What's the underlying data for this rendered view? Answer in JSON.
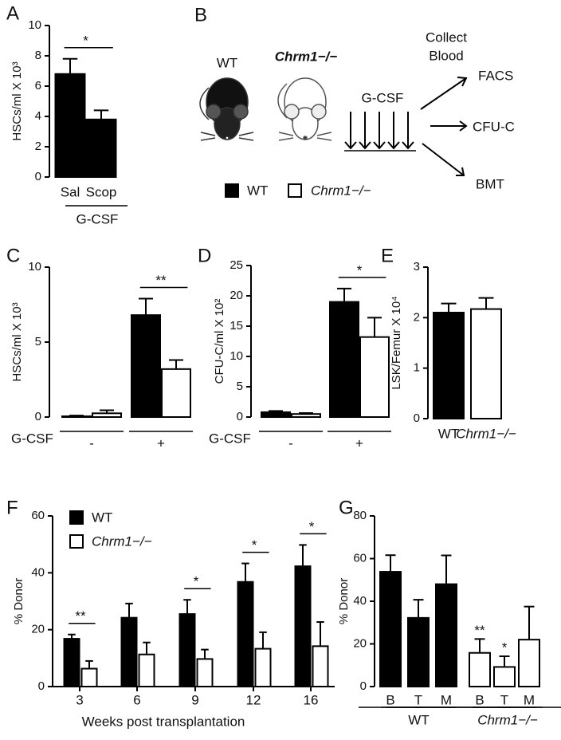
{
  "chart_data": [
    {
      "type": "bar",
      "label": "A",
      "ylabel": "HSCs/ml X 10³",
      "categories": [
        "Sal",
        "Scop"
      ],
      "values": [
        6.8,
        3.8
      ],
      "errors": [
        1.0,
        0.6
      ],
      "colors": [
        "#000000",
        "#000000"
      ],
      "xlabel": "G-CSF",
      "significance": "*",
      "ylim": [
        0,
        10
      ],
      "yticks": [
        0,
        2,
        4,
        6,
        8,
        10
      ]
    },
    {
      "type": "bar",
      "label": "C",
      "ylabel": "HSCs/ml X 10³",
      "categories": [
        "-",
        "+"
      ],
      "series": [
        {
          "color": "#000000",
          "values": [
            0.05,
            6.8
          ],
          "errors": [
            0.05,
            1.1
          ]
        },
        {
          "color": "#ffffff",
          "values": [
            0.25,
            3.2
          ],
          "errors": [
            0.2,
            0.6
          ]
        }
      ],
      "xlabel": "G-CSF",
      "significance": [
        null,
        "**"
      ],
      "ylim": [
        0,
        10
      ],
      "yticks": [
        0,
        5,
        10
      ]
    },
    {
      "type": "bar",
      "label": "D",
      "ylabel": "CFU-C/ml X 10²",
      "categories": [
        "-",
        "+"
      ],
      "series": [
        {
          "color": "#000000",
          "values": [
            0.8,
            19
          ],
          "errors": [
            0.2,
            2.2
          ]
        },
        {
          "color": "#ffffff",
          "values": [
            0.5,
            13.2
          ],
          "errors": [
            0.15,
            3.2
          ]
        }
      ],
      "xlabel": "G-CSF",
      "significance": [
        null,
        "*"
      ],
      "ylim": [
        0,
        25
      ],
      "yticks": [
        0,
        5,
        10,
        15,
        20,
        25
      ]
    },
    {
      "type": "bar",
      "label": "E",
      "ylabel": "LSK/Femur  X 10⁴",
      "categories": [
        "WT",
        "Chrm1−/−"
      ],
      "values": [
        2.1,
        2.17
      ],
      "errors": [
        0.18,
        0.22
      ],
      "colors": [
        "#000000",
        "#ffffff"
      ],
      "ylim": [
        0,
        3
      ],
      "yticks": [
        0,
        1,
        2,
        3
      ]
    },
    {
      "type": "bar",
      "label": "F",
      "ylabel": "% Donor",
      "xlabel": "Weeks post transplantation",
      "categories": [
        "3",
        "6",
        "9",
        "12",
        "16"
      ],
      "series": [
        {
          "name": "WT",
          "color": "#000000",
          "values": [
            16.8,
            24.2,
            25.5,
            36.8,
            42.3
          ],
          "errors": [
            1.5,
            5,
            5,
            6.5,
            7.5
          ]
        },
        {
          "name": "Chrm1−/−",
          "color": "#ffffff",
          "values": [
            6.3,
            11.3,
            9.7,
            13.3,
            14.2
          ],
          "errors": [
            2.7,
            4.2,
            3.3,
            5.8,
            8.5
          ]
        }
      ],
      "significance": [
        "**",
        null,
        "*",
        "*",
        "*"
      ],
      "ylim": [
        0,
        60
      ],
      "yticks": [
        0,
        20,
        40,
        60
      ],
      "legend": "top-left"
    },
    {
      "type": "bar",
      "label": "G",
      "ylabel": "% Donor",
      "categories": [
        "B",
        "T",
        "M",
        "B",
        "T",
        "M"
      ],
      "values": [
        53.8,
        32.2,
        48,
        15.8,
        9.2,
        22
      ],
      "errors": [
        7.8,
        8.5,
        13.5,
        6.5,
        5,
        15.5
      ],
      "colors": [
        "#000000",
        "#000000",
        "#000000",
        "#ffffff",
        "#ffffff",
        "#ffffff"
      ],
      "groups": [
        "WT",
        "Chrm1−/−"
      ],
      "significance": [
        null,
        null,
        null,
        "**",
        "*",
        null
      ],
      "ylim": [
        0,
        80
      ],
      "yticks": [
        0,
        20,
        40,
        60,
        80
      ]
    }
  ],
  "diagram": {
    "label": "B",
    "mice": [
      "WT",
      "Chrm1−/−"
    ],
    "treatment": "G-CSF",
    "collect": [
      "Collect",
      "Blood"
    ],
    "outputs": [
      "FACS",
      "CFU-C",
      "BMT"
    ],
    "legend": [
      "WT",
      "Chrm1−/−"
    ]
  }
}
